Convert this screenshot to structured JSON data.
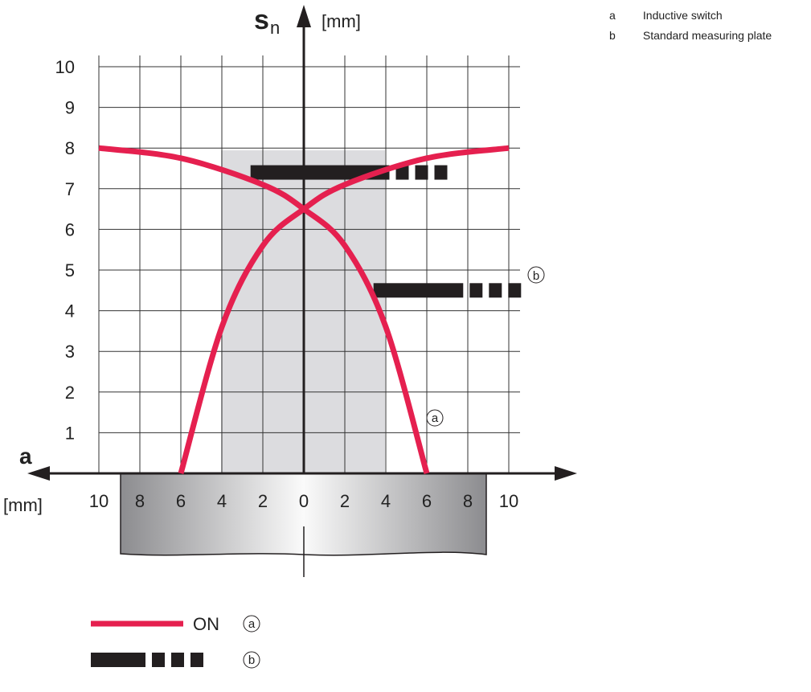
{
  "legend_key": [
    {
      "letter": "a",
      "text": "Inductive switch"
    },
    {
      "letter": "b",
      "text": "Standard measuring plate"
    }
  ],
  "axis": {
    "y_symbol": "s",
    "y_subscript": "n",
    "y_unit": "[mm]",
    "x_symbol": "a",
    "x_unit": "[mm]"
  },
  "markers": {
    "a": "a",
    "b": "b"
  },
  "bottom_legend": {
    "on_label": "ON",
    "marker_a": "a",
    "marker_b": "b"
  },
  "colors": {
    "curve": "#e5204f",
    "plate": "#231f20",
    "zone": "#dcdcdf",
    "grid": "#333333"
  },
  "chart_data": {
    "type": "line",
    "x_range": [
      -10,
      10
    ],
    "y_range": [
      0,
      10
    ],
    "x_ticks": [
      "10",
      "8",
      "6",
      "4",
      "2",
      "0",
      "2",
      "4",
      "6",
      "8",
      "10"
    ],
    "y_ticks": [
      "1",
      "2",
      "3",
      "4",
      "5",
      "6",
      "7",
      "8",
      "9",
      "10"
    ],
    "series": [
      {
        "marker": "a",
        "style": "solid",
        "points": [
          [
            -10,
            8
          ],
          [
            -6,
            7.75
          ],
          [
            -2,
            7.1
          ],
          [
            0,
            6.5
          ],
          [
            2,
            5.6
          ],
          [
            4,
            3.6
          ],
          [
            6,
            0
          ]
        ]
      },
      {
        "marker": "a",
        "style": "solid",
        "points": [
          [
            -6,
            0
          ],
          [
            -4,
            3.6
          ],
          [
            -2,
            5.6
          ],
          [
            0,
            6.5
          ],
          [
            2,
            7.1
          ],
          [
            6,
            7.75
          ],
          [
            10,
            8
          ]
        ]
      }
    ],
    "plates": [
      {
        "marker": "b",
        "x_from": -2.6,
        "x_to": 7,
        "y": 7.4
      },
      {
        "marker": "b",
        "x_from": 3.4,
        "x_to": 10.6,
        "y": 4.5
      }
    ],
    "shaded_zone": {
      "x_range": [
        -4,
        4
      ],
      "y_range": [
        0,
        8
      ]
    }
  }
}
